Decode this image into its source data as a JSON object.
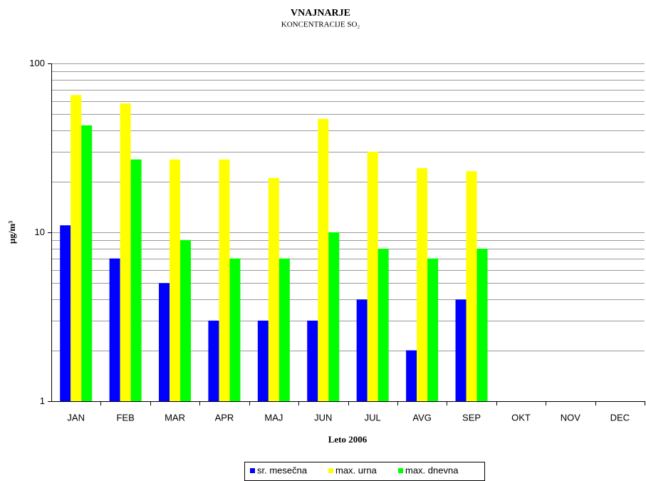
{
  "chart_data": {
    "type": "bar",
    "title": "VNAJNARJE",
    "subtitle": "KONCENTRACIJE SO₂",
    "xlabel": "Leto 2006",
    "ylabel": "µg/m³",
    "categories": [
      "JAN",
      "FEB",
      "MAR",
      "APR",
      "MAJ",
      "JUN",
      "JUL",
      "AVG",
      "SEP",
      "OKT",
      "NOV",
      "DEC"
    ],
    "series": [
      {
        "name": "sr. mesečna",
        "color": "#0000ff",
        "values": [
          11,
          7,
          5,
          3,
          3,
          3,
          4,
          2,
          4,
          null,
          null,
          null
        ]
      },
      {
        "name": "max. urna",
        "color": "#ffff00",
        "values": [
          65,
          58,
          27,
          27,
          21,
          47,
          30,
          24,
          23,
          null,
          null,
          null
        ]
      },
      {
        "name": "max. dnevna",
        "color": "#00ff00",
        "values": [
          43,
          27,
          9,
          7,
          7,
          10,
          8,
          7,
          8,
          null,
          null,
          null
        ]
      }
    ],
    "ylim": [
      1,
      100
    ],
    "yticks": [
      1,
      10,
      100
    ],
    "y_minor_ticks": [
      2,
      3,
      4,
      5,
      6,
      7,
      8,
      9,
      20,
      30,
      40,
      50,
      60,
      70,
      80,
      90
    ],
    "log_y": true,
    "grid": true,
    "legend": "bottom"
  }
}
